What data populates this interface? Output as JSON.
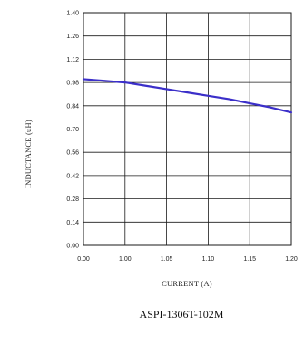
{
  "chart_data": {
    "type": "line",
    "title": "",
    "caption": "ASPI-1306T-102M",
    "xlabel": "CURRENT (A)",
    "ylabel": "INDUCTANCE (uH)",
    "x_tick_labels": [
      "0.00",
      "1.00",
      "1.05",
      "1.10",
      "1.15",
      "1.20"
    ],
    "y_tick_labels": [
      "0.00",
      "0.14",
      "0.28",
      "0.42",
      "0.56",
      "0.70",
      "0.84",
      "0.98",
      "1.12",
      "1.26",
      "1.40"
    ],
    "ylim": [
      0,
      1.4
    ],
    "grid": true,
    "legend": "none",
    "series": [
      {
        "color": "#3b2fc9",
        "x": [
          0.0,
          0.5,
          1.0,
          1.5,
          2.0,
          2.5,
          3.0,
          3.5,
          4.0,
          4.5,
          5.0
        ],
        "values": [
          1.0,
          0.99,
          0.98,
          0.96,
          0.94,
          0.92,
          0.9,
          0.88,
          0.855,
          0.83,
          0.8
        ]
      }
    ]
  }
}
